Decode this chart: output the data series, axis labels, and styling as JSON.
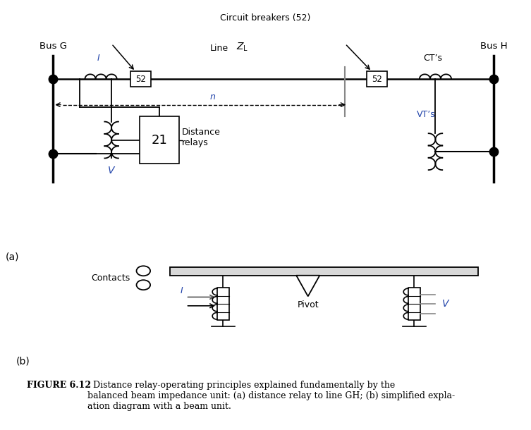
{
  "bg_color": "#ffffff",
  "line_color": "#000000",
  "blue_color": "#2244aa",
  "fig_caption_bold": "FIGURE 6.12",
  "fig_caption_rest": "  Distance relay-operating principles explained fundamentally by the\nbalanced beam impedance unit: (a) distance relay to line GH; (b) simplified expla-\nation diagram with a beam unit.",
  "label_bus_g": "Bus G",
  "label_bus_h": "Bus H",
  "label_circuit_breakers": "Circuit breakers (52)",
  "label_line": "Line",
  "label_ZL": "$Z_\\mathregular{L}$",
  "label_n": "n",
  "label_CTs": "CT’s",
  "label_VTs": "VT’s",
  "label_21": "21",
  "label_distance_relays": "Distance\nrelays",
  "label_V_a": "V",
  "label_I": "I",
  "label_52": "52",
  "label_contacts": "Contacts",
  "label_I_b": "I",
  "label_pivot": "Pivot",
  "label_V_b": "V",
  "label_a": "(a)",
  "label_b": "(b)"
}
